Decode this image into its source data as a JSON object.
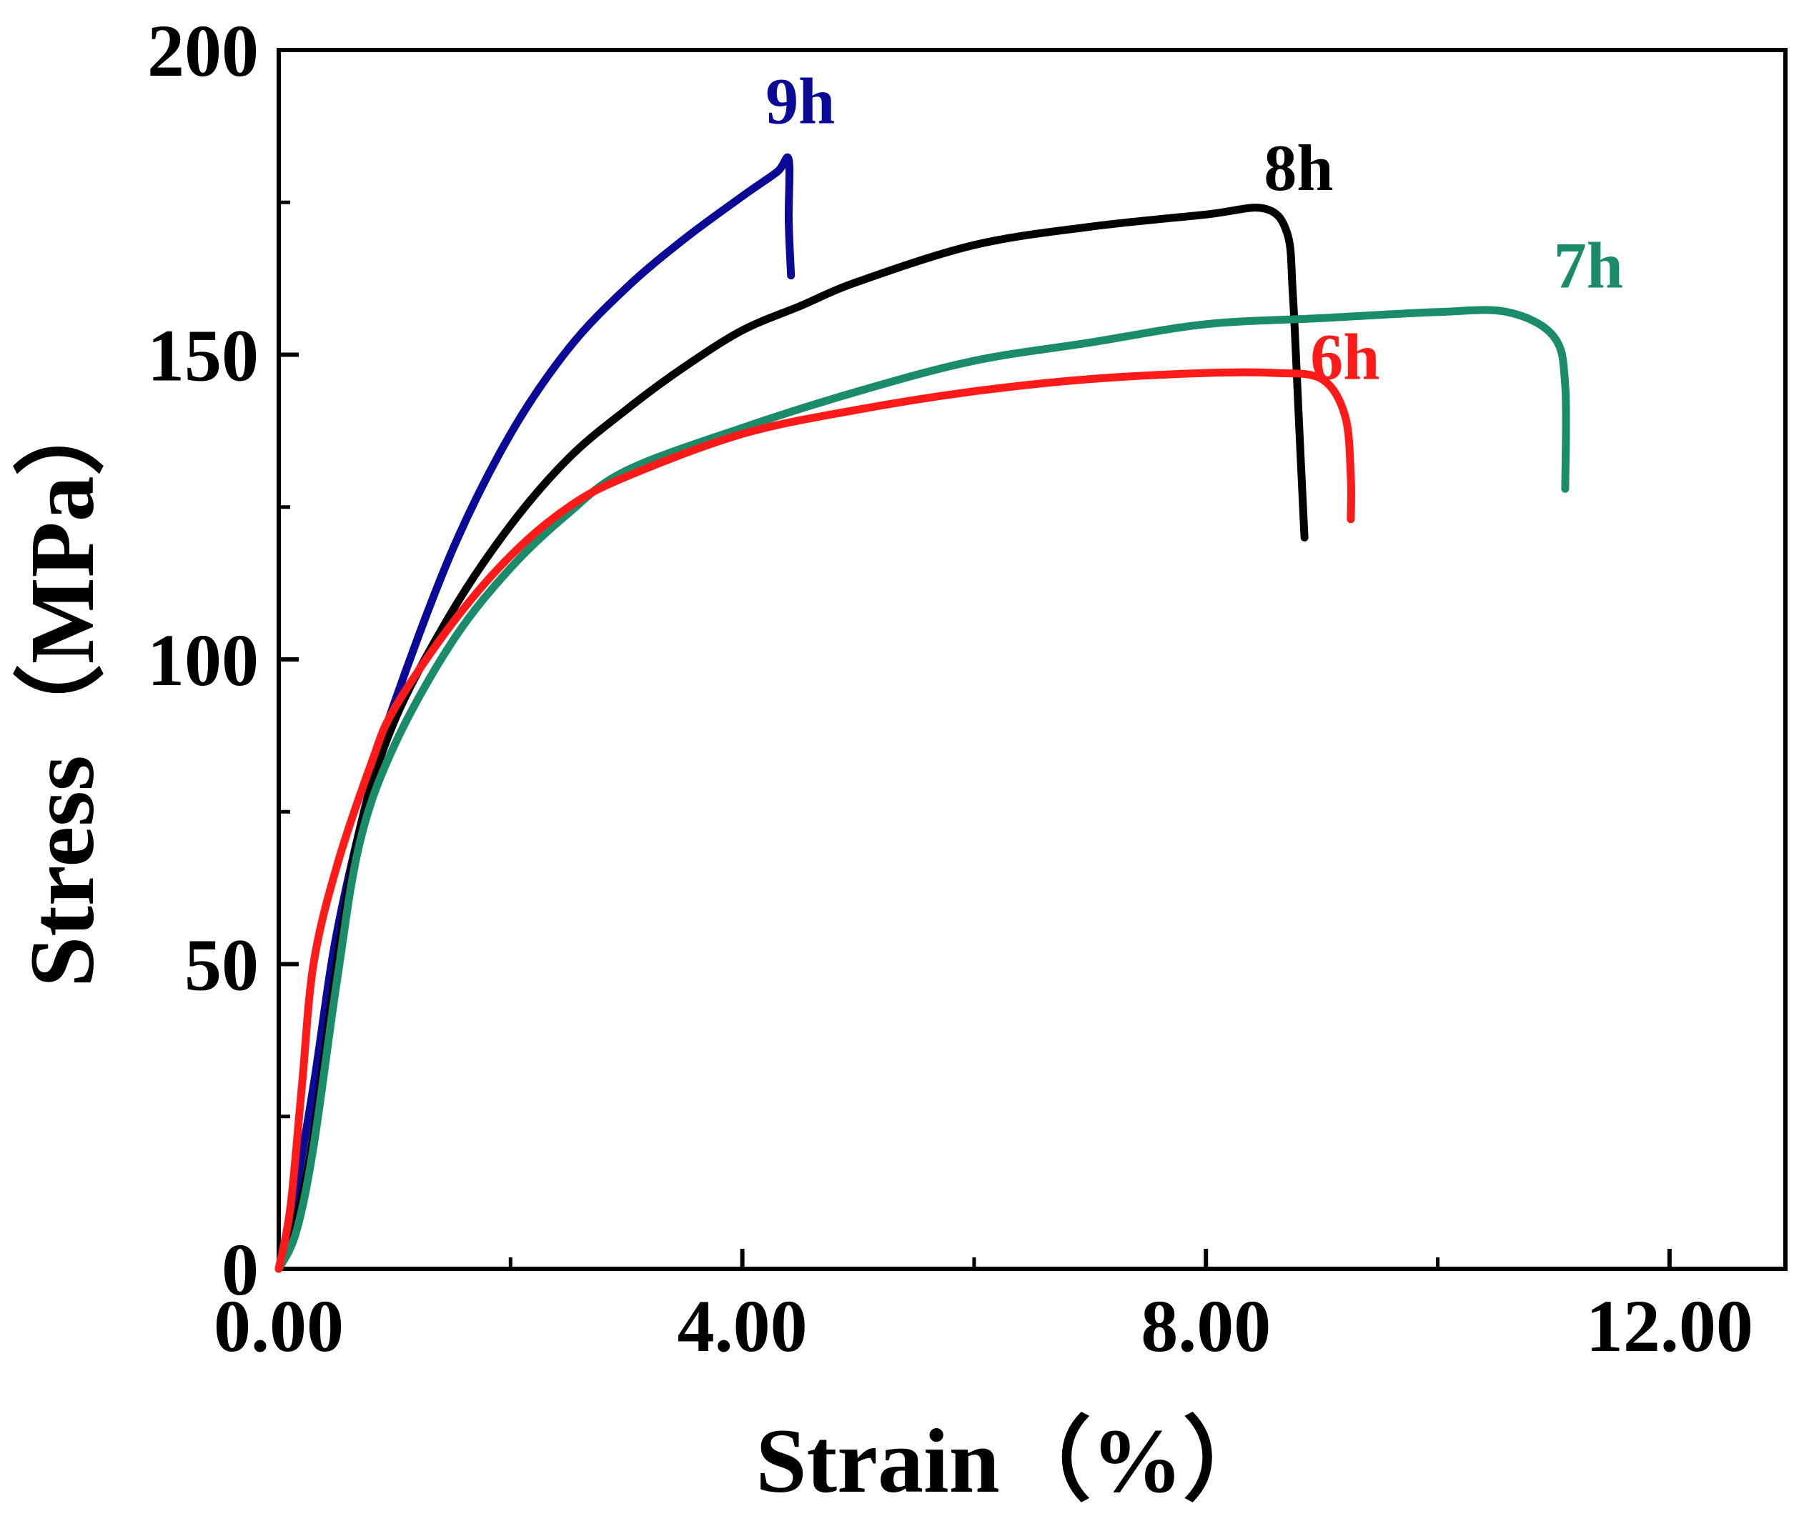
{
  "chart_data": {
    "type": "line",
    "title": "",
    "xlabel": "Strain（%）",
    "ylabel": "Stress（MPa）",
    "xlim": [
      0,
      13
    ],
    "ylim": [
      0,
      200
    ],
    "x_ticks": [
      0,
      4,
      8,
      12
    ],
    "x_tick_labels": [
      "0.00",
      "4.00",
      "8.00",
      "12.00"
    ],
    "y_ticks": [
      0,
      50,
      100,
      150,
      200
    ],
    "y_tick_labels": [
      "0",
      "50",
      "100",
      "150",
      "200"
    ],
    "grid": false,
    "legend": "inline labels",
    "series": [
      {
        "name": "9h",
        "color": "#0a0a96",
        "points": [
          [
            0,
            0
          ],
          [
            0.1,
            8
          ],
          [
            0.3,
            30
          ],
          [
            0.5,
            55
          ],
          [
            0.8,
            80
          ],
          [
            1.0,
            93
          ],
          [
            1.5,
            118
          ],
          [
            2.0,
            137
          ],
          [
            2.5,
            151
          ],
          [
            3.0,
            161
          ],
          [
            3.5,
            169
          ],
          [
            4.0,
            176
          ],
          [
            4.3,
            180
          ],
          [
            4.4,
            182
          ],
          [
            4.4,
            172
          ],
          [
            4.42,
            163
          ]
        ]
      },
      {
        "name": "8h",
        "color": "#000000",
        "points": [
          [
            0,
            0
          ],
          [
            0.15,
            8
          ],
          [
            0.3,
            22
          ],
          [
            0.5,
            50
          ],
          [
            0.7,
            72
          ],
          [
            1.0,
            90
          ],
          [
            1.5,
            108
          ],
          [
            2.0,
            122
          ],
          [
            2.5,
            133
          ],
          [
            3.0,
            141
          ],
          [
            3.5,
            148
          ],
          [
            4.0,
            154
          ],
          [
            4.5,
            158
          ],
          [
            5.0,
            162
          ],
          [
            6.0,
            168
          ],
          [
            7.0,
            171
          ],
          [
            8.0,
            173
          ],
          [
            8.5,
            174
          ],
          [
            8.7,
            170
          ],
          [
            8.75,
            160
          ],
          [
            8.8,
            140
          ],
          [
            8.85,
            120
          ]
        ]
      },
      {
        "name": "7h",
        "color": "#1a8c6a",
        "points": [
          [
            0,
            0
          ],
          [
            0.15,
            6
          ],
          [
            0.3,
            20
          ],
          [
            0.5,
            47
          ],
          [
            0.7,
            70
          ],
          [
            1.0,
            86
          ],
          [
            1.5,
            103
          ],
          [
            2.0,
            115
          ],
          [
            2.5,
            124
          ],
          [
            3.0,
            131
          ],
          [
            4.0,
            138
          ],
          [
            5.0,
            144
          ],
          [
            6.0,
            149
          ],
          [
            7.0,
            152
          ],
          [
            8.0,
            155
          ],
          [
            9.0,
            156
          ],
          [
            10.0,
            157
          ],
          [
            10.6,
            157
          ],
          [
            11.0,
            153
          ],
          [
            11.1,
            145
          ],
          [
            11.1,
            128
          ]
        ]
      },
      {
        "name": "6h",
        "color": "#ff1a1a",
        "points": [
          [
            0,
            0
          ],
          [
            0.1,
            10
          ],
          [
            0.2,
            30
          ],
          [
            0.3,
            50
          ],
          [
            0.5,
            66
          ],
          [
            0.8,
            83
          ],
          [
            1.0,
            92
          ],
          [
            1.5,
            106
          ],
          [
            2.0,
            117
          ],
          [
            2.5,
            125
          ],
          [
            3.0,
            130
          ],
          [
            4.0,
            137
          ],
          [
            5.0,
            141
          ],
          [
            6.0,
            144
          ],
          [
            7.0,
            146
          ],
          [
            8.0,
            147
          ],
          [
            8.6,
            147
          ],
          [
            9.0,
            146
          ],
          [
            9.2,
            140
          ],
          [
            9.25,
            130
          ],
          [
            9.25,
            123
          ]
        ]
      }
    ],
    "annotations": [
      {
        "text": "9h",
        "x": 4.5,
        "y": 188,
        "color": "#0a0a96"
      },
      {
        "text": "8h",
        "x": 8.8,
        "y": 177,
        "color": "#000000"
      },
      {
        "text": "7h",
        "x": 11.3,
        "y": 161,
        "color": "#1a8c6a"
      },
      {
        "text": "6h",
        "x": 9.2,
        "y": 146,
        "color": "#ff1a1a"
      }
    ]
  }
}
